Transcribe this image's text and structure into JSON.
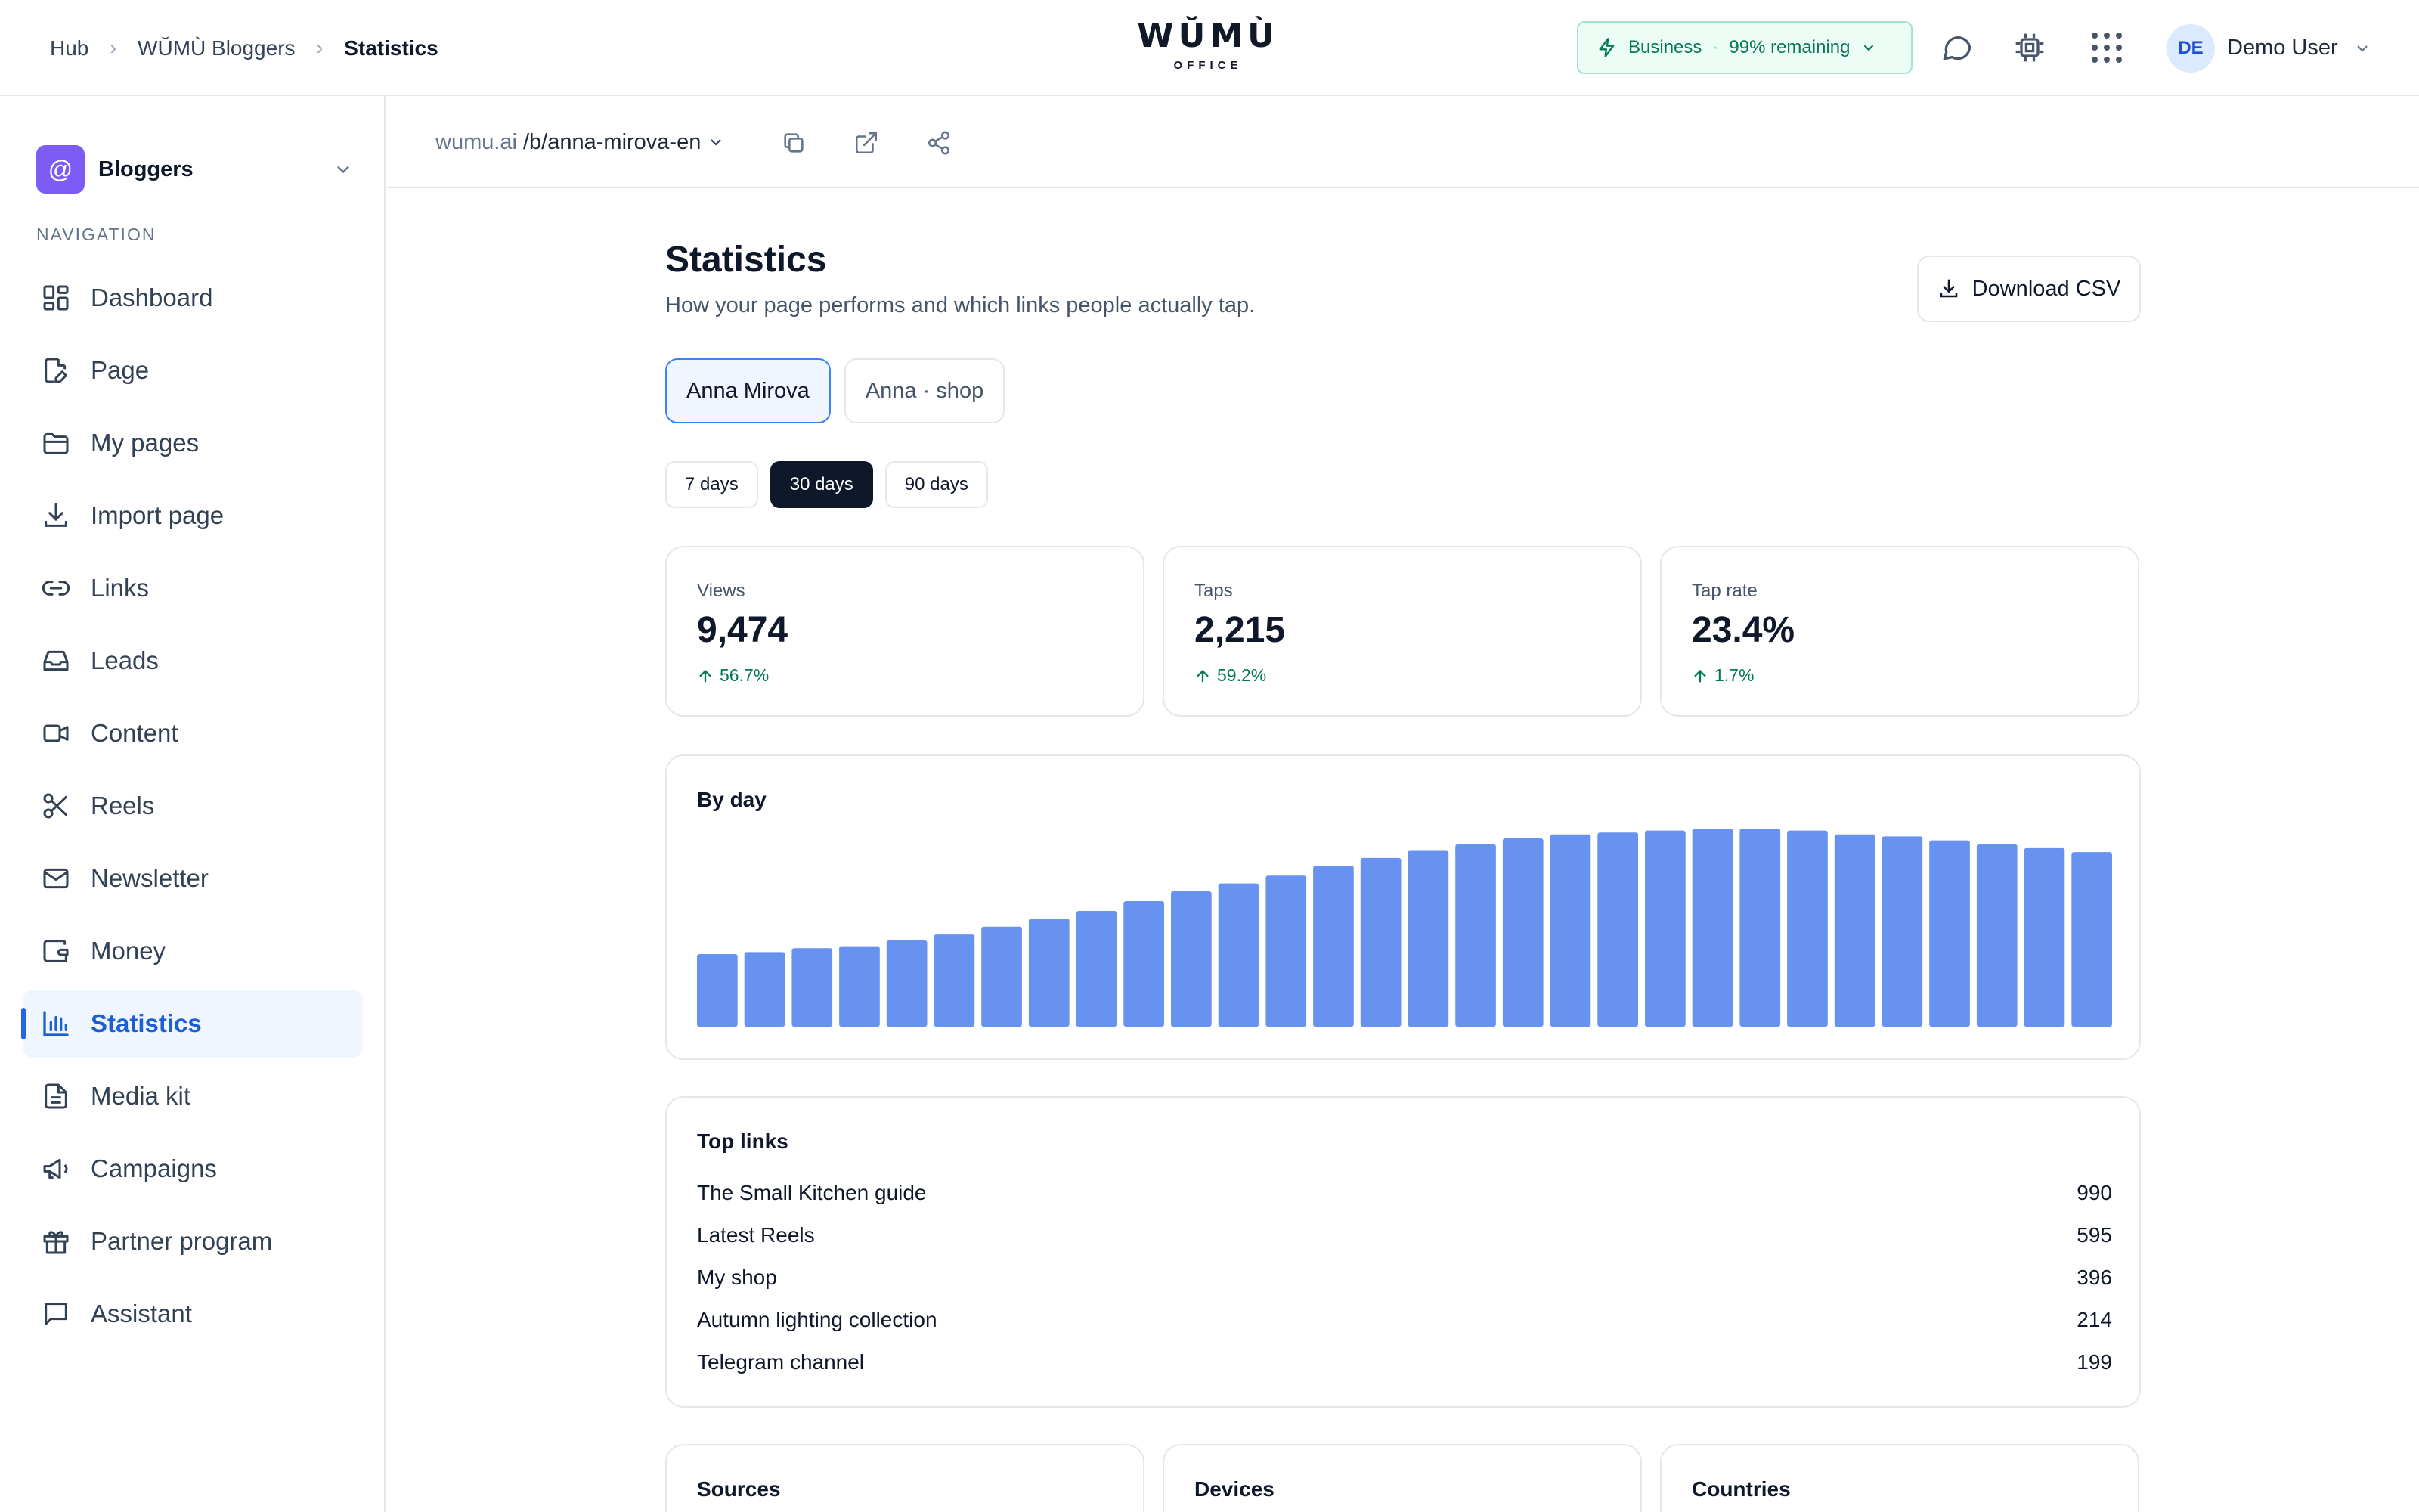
{
  "header": {
    "breadcrumbs": [
      "Hub",
      "WŬMÙ Bloggers",
      "Statistics"
    ],
    "logo": {
      "word": "WŬMÙ",
      "sub": "OFFICE"
    },
    "plan": {
      "name": "Business",
      "remaining": "99% remaining"
    },
    "user": {
      "initials": "DE",
      "name": "Demo User"
    }
  },
  "sidebar": {
    "workspace": {
      "icon": "@",
      "name": "Bloggers"
    },
    "nav_title": "NAVIGATION",
    "items": [
      {
        "label": "Dashboard",
        "icon": "dashboard-icon"
      },
      {
        "label": "Page",
        "icon": "page-edit-icon"
      },
      {
        "label": "My pages",
        "icon": "folder-icon"
      },
      {
        "label": "Import page",
        "icon": "download-icon"
      },
      {
        "label": "Links",
        "icon": "link-icon"
      },
      {
        "label": "Leads",
        "icon": "inbox-icon"
      },
      {
        "label": "Content",
        "icon": "video-icon"
      },
      {
        "label": "Reels",
        "icon": "scissors-icon"
      },
      {
        "label": "Newsletter",
        "icon": "mail-icon"
      },
      {
        "label": "Money",
        "icon": "wallet-icon"
      },
      {
        "label": "Statistics",
        "icon": "bar-chart-icon",
        "active": true
      },
      {
        "label": "Media kit",
        "icon": "document-icon"
      },
      {
        "label": "Campaigns",
        "icon": "megaphone-icon"
      },
      {
        "label": "Partner program",
        "icon": "gift-icon"
      },
      {
        "label": "Assistant",
        "icon": "chat-icon"
      }
    ]
  },
  "urlbar": {
    "domain": "wumu.ai",
    "path": "/b/anna-mirova-en"
  },
  "main": {
    "title": "Statistics",
    "subtitle": "How your page performs and which links people actually tap.",
    "download_label": "Download CSV",
    "pages": [
      {
        "label": "Anna Mirova",
        "active": true
      },
      {
        "label": "Anna · shop",
        "active": false
      }
    ],
    "ranges": [
      {
        "label": "7 days",
        "active": false
      },
      {
        "label": "30 days",
        "active": true
      },
      {
        "label": "90 days",
        "active": false
      }
    ],
    "kpis": [
      {
        "label": "Views",
        "value": "9,474",
        "delta": "56.7%"
      },
      {
        "label": "Taps",
        "value": "2,215",
        "delta": "59.2%"
      },
      {
        "label": "Tap rate",
        "value": "23.4%",
        "delta": "1.7%"
      }
    ],
    "by_day_title": "By day",
    "top_links_title": "Top links",
    "top_links": [
      {
        "name": "The Small Kitchen guide",
        "count": "990"
      },
      {
        "name": "Latest Reels",
        "count": "595"
      },
      {
        "name": "My shop",
        "count": "396"
      },
      {
        "name": "Autumn lighting collection",
        "count": "214"
      },
      {
        "name": "Telegram channel",
        "count": "199"
      }
    ],
    "bottom_cards": [
      "Sources",
      "Devices",
      "Countries"
    ]
  },
  "chart_data": {
    "type": "bar",
    "title": "By day",
    "values": [
      37,
      38,
      40,
      41,
      44,
      47,
      51,
      55,
      59,
      64,
      69,
      73,
      77,
      82,
      86,
      90,
      93,
      96,
      98,
      99,
      100,
      101,
      101,
      100,
      98,
      97,
      95,
      93,
      91,
      89
    ],
    "ylim": [
      0,
      101
    ],
    "color": "#6792f0",
    "grid": false
  },
  "colors": {
    "accent": "#2563eb",
    "positive": "#047857",
    "workspace": "#7c5cf5"
  }
}
